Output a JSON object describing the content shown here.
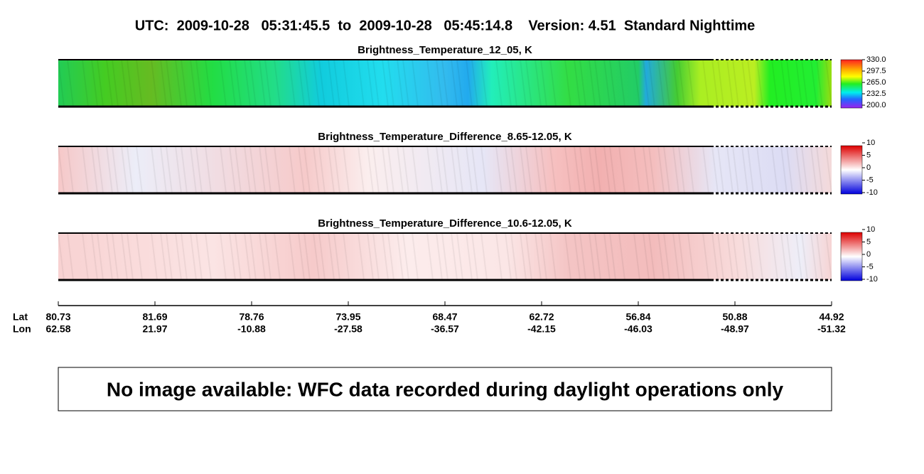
{
  "header": {
    "title": "UTC:  2009-10-28   05:31:45.5  to  2009-10-28   05:45:14.8    Version: 4.51  Standard Nighttime"
  },
  "panels": [
    {
      "title": "Brightness_Temperature_12_05, K",
      "colorbar_ticks": [
        "330.0",
        "297.5",
        "265.0",
        "232.5",
        "200.0"
      ]
    },
    {
      "title": "Brightness_Temperature_Difference_8.65-12.05, K",
      "colorbar_ticks": [
        "10",
        "5",
        "0",
        "-5",
        "-10"
      ]
    },
    {
      "title": "Brightness_Temperature_Difference_10.6-12.05, K",
      "colorbar_ticks": [
        "10",
        "5",
        "0",
        "-5",
        "-10"
      ]
    }
  ],
  "axis": {
    "row_labels": [
      "Lat",
      "Lon"
    ],
    "ticks": [
      {
        "lat": "80.73",
        "lon": "62.58"
      },
      {
        "lat": "81.69",
        "lon": "21.97"
      },
      {
        "lat": "78.76",
        "lon": "-10.88"
      },
      {
        "lat": "73.95",
        "lon": "-27.58"
      },
      {
        "lat": "68.47",
        "lon": "-36.57"
      },
      {
        "lat": "62.72",
        "lon": "-42.15"
      },
      {
        "lat": "56.84",
        "lon": "-46.03"
      },
      {
        "lat": "50.88",
        "lon": "-48.97"
      },
      {
        "lat": "44.92",
        "lon": "-51.32"
      }
    ]
  },
  "message": "No image available: WFC data recorded during daylight operations only"
}
